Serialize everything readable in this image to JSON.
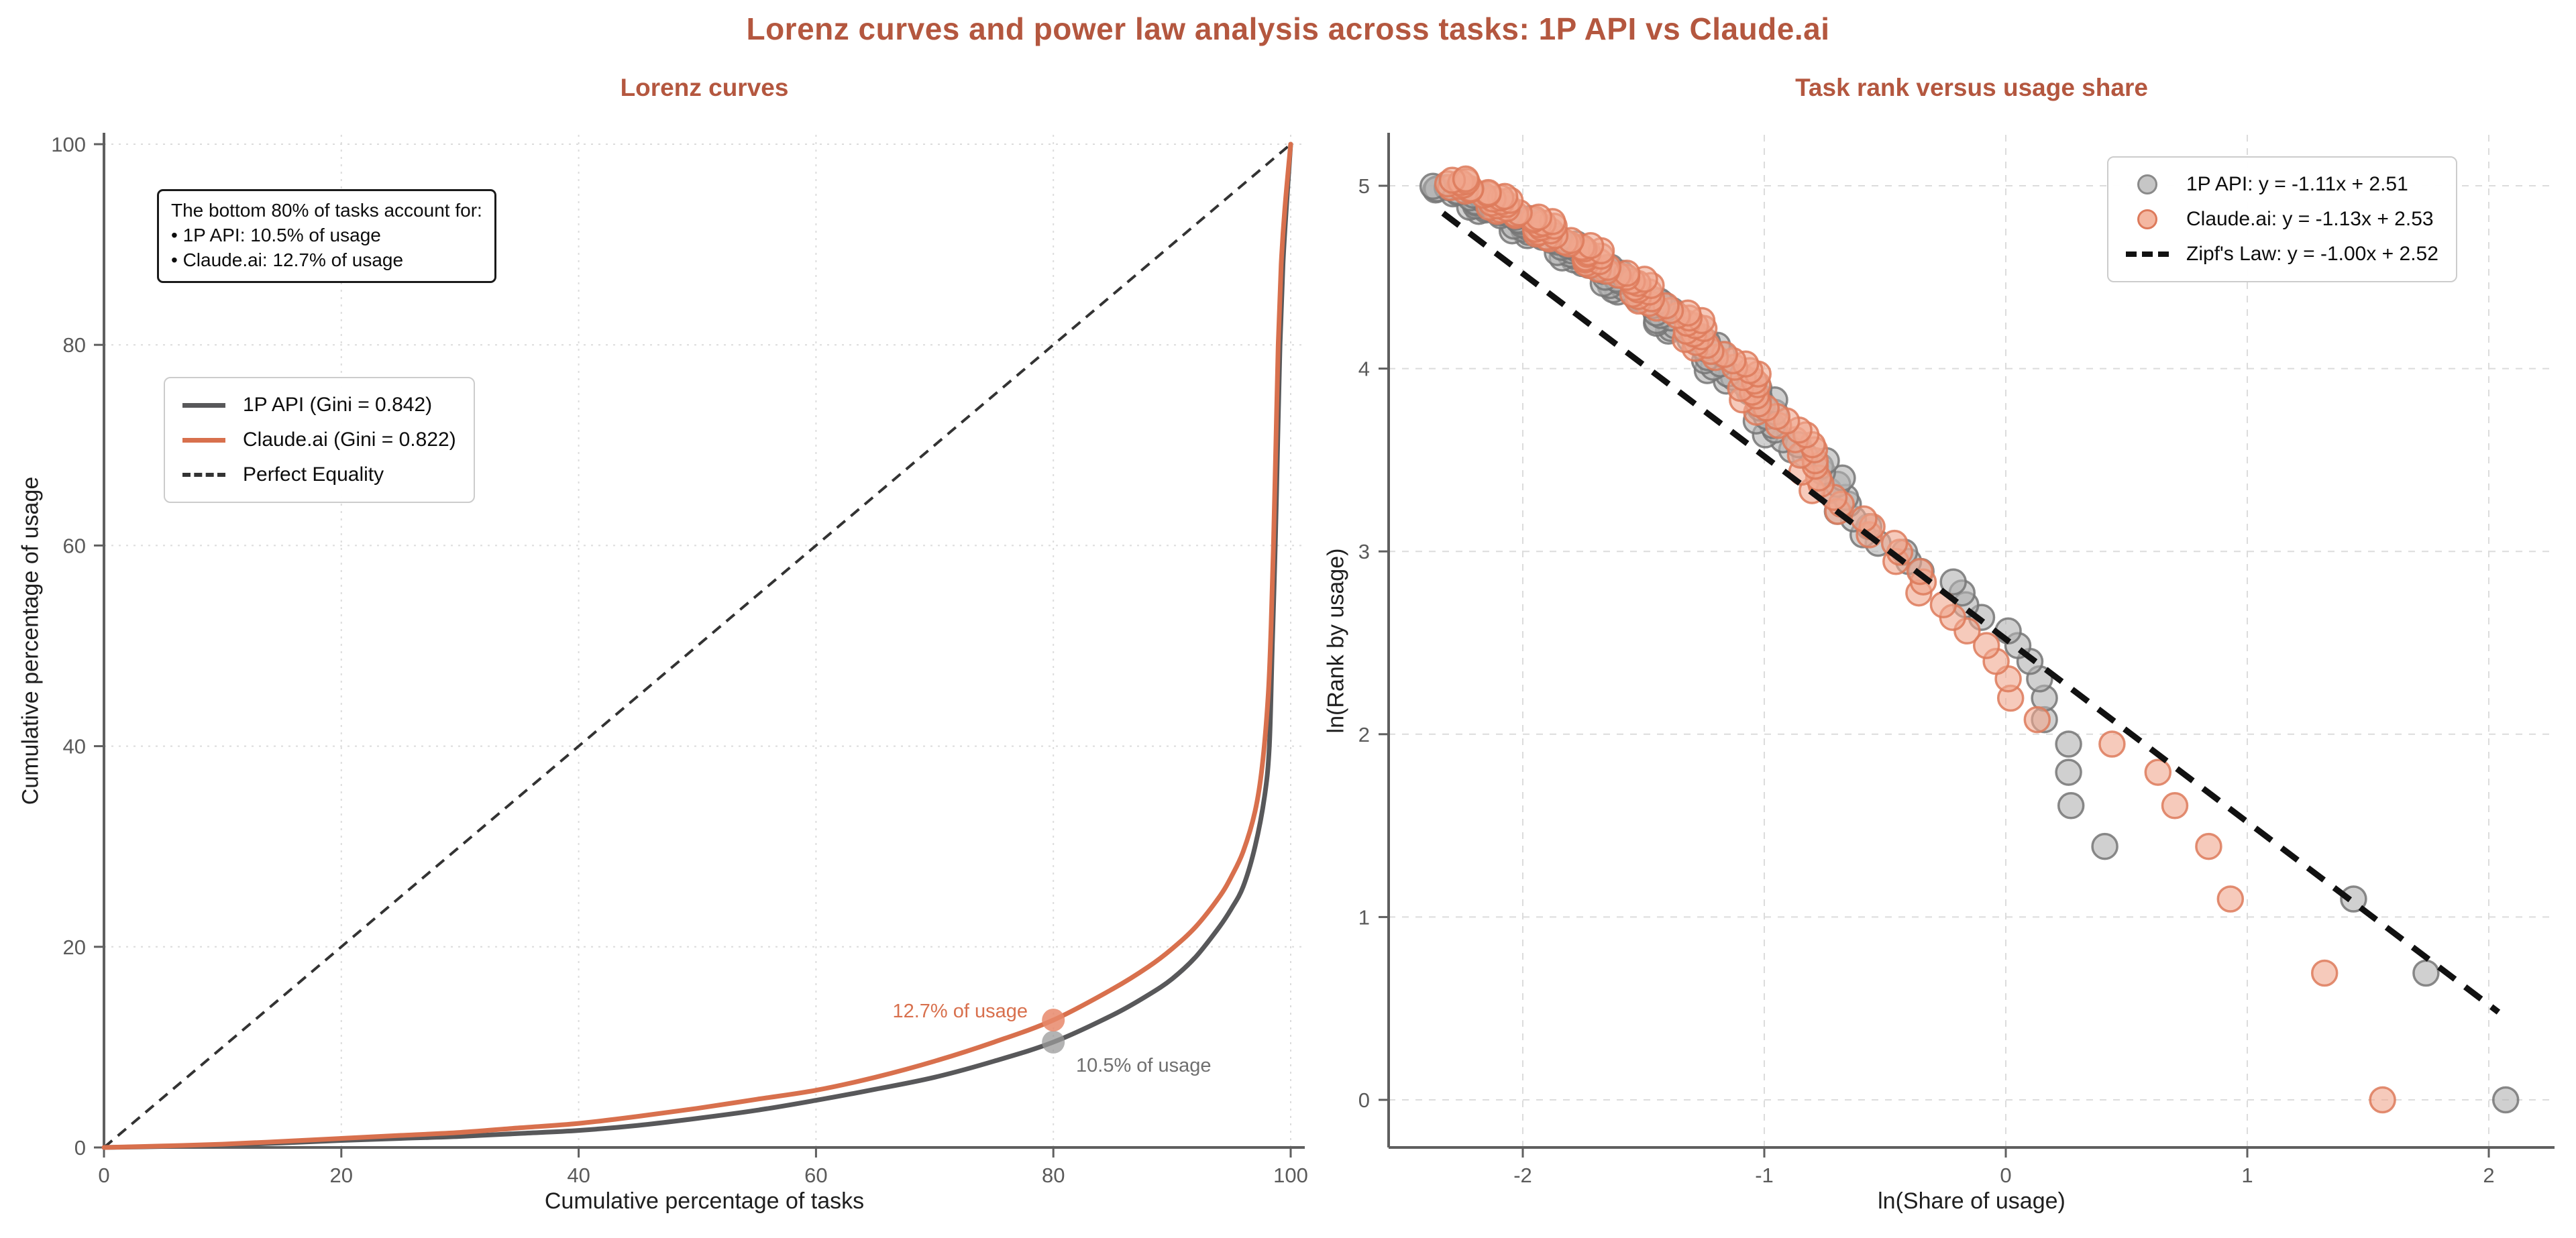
{
  "page": {
    "title": "Lorenz curves and power law analysis across tasks: 1P API vs Claude.ai",
    "title_color": "#b4573f",
    "background": "#ffffff"
  },
  "annotation": {
    "lines": [
      "The bottom 80% of tasks account for:",
      "• 1P API: 10.5% of usage",
      "• Claude.ai: 12.7% of usage"
    ]
  },
  "colors": {
    "accent_title": "#b4573f",
    "gray_line": "#58585a",
    "orange_line": "#d8704d",
    "equality_dash": "#333333",
    "zipf_dash": "#111111",
    "scatter_gray_fill": "#b0b0b0",
    "scatter_gray_edge": "#757575",
    "scatter_salmon_fill": "#f0a78e",
    "scatter_salmon_edge": "#dd7a5b",
    "grid": "#dcdcdc",
    "spine": "#5f5f5f",
    "tick_label": "#5a5a5a"
  },
  "chart_data": [
    {
      "type": "line",
      "title": "Lorenz curves",
      "xlabel": "Cumulative percentage of tasks",
      "ylabel": "Cumulative percentage of usage",
      "xlim": [
        0,
        101.2
      ],
      "ylim": [
        0,
        101.3
      ],
      "xticks": [
        0,
        20,
        40,
        60,
        80,
        100
      ],
      "yticks": [
        0,
        20,
        40,
        60,
        80,
        100
      ],
      "grid": true,
      "legend_position": "upper left",
      "series": [
        {
          "name": "1P API (Gini = 0.842)",
          "gini": 0.842,
          "color": "#58585a",
          "style": "solid",
          "points": [
            [
              0,
              0
            ],
            [
              5,
              0.1
            ],
            [
              10,
              0.25
            ],
            [
              15,
              0.45
            ],
            [
              20,
              0.7
            ],
            [
              25,
              0.9
            ],
            [
              30,
              1.1
            ],
            [
              35,
              1.4
            ],
            [
              40,
              1.7
            ],
            [
              45,
              2.2
            ],
            [
              50,
              2.9
            ],
            [
              55,
              3.7
            ],
            [
              60,
              4.7
            ],
            [
              65,
              5.8
            ],
            [
              70,
              7.0
            ],
            [
              75,
              8.6
            ],
            [
              80,
              10.5
            ],
            [
              85,
              13.2
            ],
            [
              88,
              15.2
            ],
            [
              90,
              16.8
            ],
            [
              92,
              19.0
            ],
            [
              94,
              22.0
            ],
            [
              95,
              23.8
            ],
            [
              96,
              26.0
            ],
            [
              97,
              30.0
            ],
            [
              97.8,
              35.0
            ],
            [
              98.2,
              40.0
            ],
            [
              98.45,
              50.0
            ],
            [
              98.7,
              60.0
            ],
            [
              98.9,
              70.0
            ],
            [
              99.1,
              80.0
            ],
            [
              99.35,
              88.0
            ],
            [
              99.6,
              93.0
            ],
            [
              100,
              100
            ]
          ]
        },
        {
          "name": "Claude.ai (Gini = 0.822)",
          "gini": 0.822,
          "color": "#d8704d",
          "style": "solid",
          "points": [
            [
              0,
              0
            ],
            [
              5,
              0.15
            ],
            [
              10,
              0.33
            ],
            [
              15,
              0.6
            ],
            [
              20,
              0.9
            ],
            [
              25,
              1.2
            ],
            [
              30,
              1.5
            ],
            [
              35,
              1.95
            ],
            [
              40,
              2.4
            ],
            [
              45,
              3.1
            ],
            [
              50,
              3.9
            ],
            [
              55,
              4.8
            ],
            [
              60,
              5.7
            ],
            [
              65,
              7.0
            ],
            [
              70,
              8.6
            ],
            [
              75,
              10.5
            ],
            [
              80,
              12.7
            ],
            [
              85,
              15.8
            ],
            [
              88,
              18.0
            ],
            [
              90,
              19.8
            ],
            [
              92,
              22.0
            ],
            [
              94,
              25.0
            ],
            [
              95,
              27.0
            ],
            [
              96,
              29.5
            ],
            [
              97,
              33.5
            ],
            [
              97.6,
              38.0
            ],
            [
              98.1,
              45.0
            ],
            [
              98.35,
              52.0
            ],
            [
              98.55,
              60.0
            ],
            [
              98.75,
              70.0
            ],
            [
              98.95,
              80.0
            ],
            [
              99.2,
              88.0
            ],
            [
              99.5,
              93.5
            ],
            [
              100,
              100
            ]
          ]
        },
        {
          "name": "Perfect Equality",
          "color": "#333333",
          "style": "dashed",
          "points": [
            [
              0,
              0
            ],
            [
              100,
              100
            ]
          ]
        }
      ],
      "highlight_points": [
        {
          "series": "Claude.ai",
          "x": 80,
          "y": 12.7,
          "label": "12.7% of usage",
          "color": "#d8704d",
          "marker_fill": "#e8886b"
        },
        {
          "series": "1P API",
          "x": 80,
          "y": 10.5,
          "label": "10.5% of usage",
          "color": "#6f6f6f",
          "marker_fill": "#9a9a9a"
        }
      ]
    },
    {
      "type": "scatter",
      "title": "Task rank versus usage share",
      "xlabel": "ln(Share of usage)",
      "ylabel": "ln(Rank by usage)",
      "xlim": [
        -2.55,
        2.27
      ],
      "ylim": [
        -0.26,
        5.3
      ],
      "xticks": [
        -2,
        -1,
        0,
        1,
        2
      ],
      "yticks": [
        0,
        1,
        2,
        3,
        4,
        5
      ],
      "grid": true,
      "legend_position": "upper right",
      "series": [
        {
          "name": "1P API: y = -1.11x + 2.51",
          "fit": {
            "slope": -1.11,
            "intercept": 2.51
          },
          "n_points": 148,
          "fill": "#b0b0b0",
          "edge": "#757575",
          "tail_x": [
            2.07,
            1.74,
            1.44,
            0.41,
            0.27,
            0.26,
            0.26,
            0.16,
            0.16,
            0.14,
            0.1,
            0.05,
            0.01,
            -0.1
          ],
          "band_anchors": [
            [
              2.64,
              -0.1
            ],
            [
              3.0,
              -0.46
            ],
            [
              3.3,
              -0.68
            ],
            [
              3.6,
              -0.89
            ],
            [
              3.95,
              -1.12
            ],
            [
              4.3,
              -1.42
            ],
            [
              4.6,
              -1.75
            ],
            [
              4.82,
              -2.05
            ],
            [
              5.01,
              -2.34
            ]
          ],
          "jitter": {
            "a1": 0.04,
            "f1": 1.93,
            "p1": 0.7,
            "a2": 0.045,
            "f2": 0.41,
            "p2": 1.3
          }
        },
        {
          "name": "Claude.ai: y = -1.13x + 2.53",
          "fit": {
            "slope": -1.13,
            "intercept": 2.53
          },
          "n_points": 154,
          "fill": "#f0a78e",
          "edge": "#dd7a5b",
          "tail_x": [
            1.56,
            1.32,
            0.93,
            0.84,
            0.7,
            0.63,
            0.44,
            0.13,
            0.02,
            0.01,
            -0.04,
            -0.08,
            -0.16,
            -0.22
          ],
          "band_anchors": [
            [
              2.64,
              -0.22
            ],
            [
              3.0,
              -0.5
            ],
            [
              3.3,
              -0.7
            ],
            [
              3.6,
              -0.87
            ],
            [
              3.95,
              -1.08
            ],
            [
              4.3,
              -1.37
            ],
            [
              4.6,
              -1.7
            ],
            [
              4.82,
              -1.98
            ],
            [
              5.05,
              -2.3
            ]
          ],
          "jitter": {
            "a1": 0.04,
            "f1": 2.11,
            "p1": 2.1,
            "a2": 0.045,
            "f2": 0.37,
            "p2": 0.4
          }
        },
        {
          "name": "Zipf's Law: y = -1.00x + 2.52",
          "fit": {
            "slope": -1.0,
            "intercept": 2.52
          },
          "style": "dashed",
          "color": "#111111",
          "x_range": [
            -2.33,
            2.04
          ]
        }
      ]
    }
  ]
}
